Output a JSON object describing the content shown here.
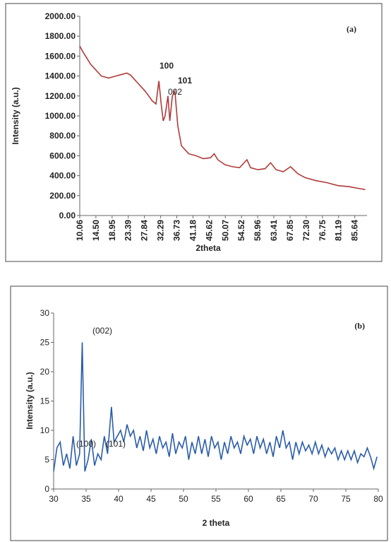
{
  "chart_data": [
    {
      "type": "line",
      "panel_label": "(a)",
      "x_label": "2theta",
      "y_label": "Intensity (a.u.)",
      "annotations": [
        "100",
        "002",
        "101"
      ],
      "xlim": [
        10.06,
        89
      ],
      "ylim": [
        0,
        2000
      ],
      "xticks": [
        10.06,
        {
          "value": 14.5,
          "label": "14.50"
        },
        18.95,
        23.39,
        27.84,
        32.29,
        36.73,
        41.18,
        45.62,
        50.07,
        54.52,
        58.96,
        63.41,
        67.85,
        {
          "value": 72.3,
          "label": "72.30"
        },
        76.75,
        81.19,
        85.64
      ],
      "yticks": [
        {
          "value": 0,
          "label": "0.00"
        },
        {
          "value": 200,
          "label": "200.00"
        },
        {
          "value": 400,
          "label": "400.00"
        },
        {
          "value": 600,
          "label": "600.00"
        },
        {
          "value": 800,
          "label": "800.00"
        },
        {
          "value": 1000,
          "label": "1000.00"
        },
        {
          "value": 1200,
          "label": "1200.00"
        },
        {
          "value": 1400,
          "label": "1400.00"
        },
        {
          "value": 1600,
          "label": "1600.00"
        },
        {
          "value": 1800,
          "label": "1800.00"
        },
        {
          "value": 2000,
          "label": "2000.00"
        }
      ],
      "series": [
        {
          "color": "#b03a3a",
          "x": [
            10.06,
            11,
            12,
            13,
            14,
            15,
            16,
            17,
            18,
            19,
            20,
            21,
            22,
            23,
            24,
            25,
            26,
            27,
            28,
            29,
            30,
            31,
            31.8,
            32.5,
            33,
            33.5,
            34.3,
            34.8,
            35.5,
            36.2,
            37,
            38,
            39,
            40,
            42,
            44,
            46,
            47,
            48,
            50,
            52,
            54,
            56,
            57,
            59,
            61,
            62.5,
            64,
            66,
            68,
            70,
            72,
            75,
            78,
            81,
            84,
            87,
            88.5
          ],
          "values": [
            1700,
            1640,
            1580,
            1520,
            1480,
            1440,
            1400,
            1390,
            1380,
            1390,
            1400,
            1410,
            1420,
            1430,
            1410,
            1370,
            1330,
            1290,
            1250,
            1200,
            1150,
            1120,
            1350,
            1100,
            950,
            1000,
            1200,
            950,
            1200,
            1250,
            900,
            700,
            660,
            620,
            600,
            570,
            580,
            620,
            560,
            510,
            490,
            480,
            560,
            480,
            460,
            470,
            530,
            460,
            440,
            490,
            420,
            380,
            350,
            330,
            300,
            290,
            270,
            260
          ]
        }
      ]
    },
    {
      "type": "line",
      "panel_label": "(b)",
      "x_label": "2 theta",
      "y_label": "Intensity (a.u.)",
      "annotations": [
        "(002)",
        "(100)",
        "(101)"
      ],
      "xlim": [
        30,
        80
      ],
      "ylim": [
        0,
        30
      ],
      "xticks": [
        30,
        35,
        40,
        45,
        50,
        55,
        60,
        65,
        70,
        75,
        80
      ],
      "yticks": [
        0,
        5,
        10,
        15,
        20,
        25,
        30
      ],
      "series": [
        {
          "color": "#2a5caa",
          "x": [
            30,
            30.5,
            31,
            31.5,
            32,
            32.5,
            33,
            33.5,
            34,
            34.4,
            34.8,
            35.3,
            35.8,
            36.3,
            36.8,
            37.3,
            37.8,
            38.3,
            38.9,
            39.3,
            39.8,
            40.3,
            40.8,
            41.3,
            41.8,
            42.3,
            42.8,
            43.3,
            43.8,
            44.3,
            44.8,
            45.3,
            45.8,
            46.3,
            46.8,
            47.3,
            47.8,
            48.3,
            48.8,
            49.3,
            49.8,
            50.3,
            50.8,
            51.3,
            51.8,
            52.3,
            52.8,
            53.3,
            53.8,
            54.3,
            54.8,
            55.3,
            55.8,
            56.3,
            56.8,
            57.3,
            57.8,
            58.3,
            58.8,
            59.3,
            59.8,
            60.3,
            60.8,
            61.3,
            61.8,
            62.3,
            62.8,
            63.3,
            63.8,
            64.3,
            64.8,
            65.3,
            65.8,
            66.3,
            66.8,
            67.3,
            67.8,
            68.3,
            68.8,
            69.3,
            69.8,
            70.3,
            70.8,
            71.3,
            71.8,
            72.3,
            72.8,
            73.3,
            73.8,
            74.3,
            74.8,
            75.3,
            75.8,
            76.3,
            76.8,
            77.3,
            77.8,
            78.3,
            78.8,
            79.3,
            79.8
          ],
          "values": [
            3,
            7,
            8,
            4,
            6,
            3.5,
            9,
            4,
            6,
            25,
            3,
            5,
            8.5,
            4,
            6,
            5,
            9,
            6,
            14,
            8,
            9,
            10,
            8,
            11,
            9,
            10,
            7,
            9,
            6.5,
            10,
            7,
            8.5,
            6,
            9,
            7,
            8,
            5.5,
            9.5,
            6,
            8,
            7,
            9,
            5,
            8,
            6,
            9,
            6,
            8.5,
            5.5,
            9,
            7,
            8,
            5,
            8,
            6,
            9,
            7,
            8,
            6,
            9,
            7.5,
            8.5,
            6,
            9,
            7,
            8.5,
            6,
            8,
            5.5,
            9,
            7,
            10,
            7,
            8,
            5,
            8,
            6,
            8,
            6.5,
            7.5,
            6,
            8,
            6,
            7.5,
            5.5,
            7,
            6,
            7,
            5,
            6.5,
            5,
            6.5,
            5,
            6.5,
            4.5,
            6,
            5.5,
            7,
            5.5,
            3.5,
            5.5
          ]
        }
      ]
    }
  ]
}
